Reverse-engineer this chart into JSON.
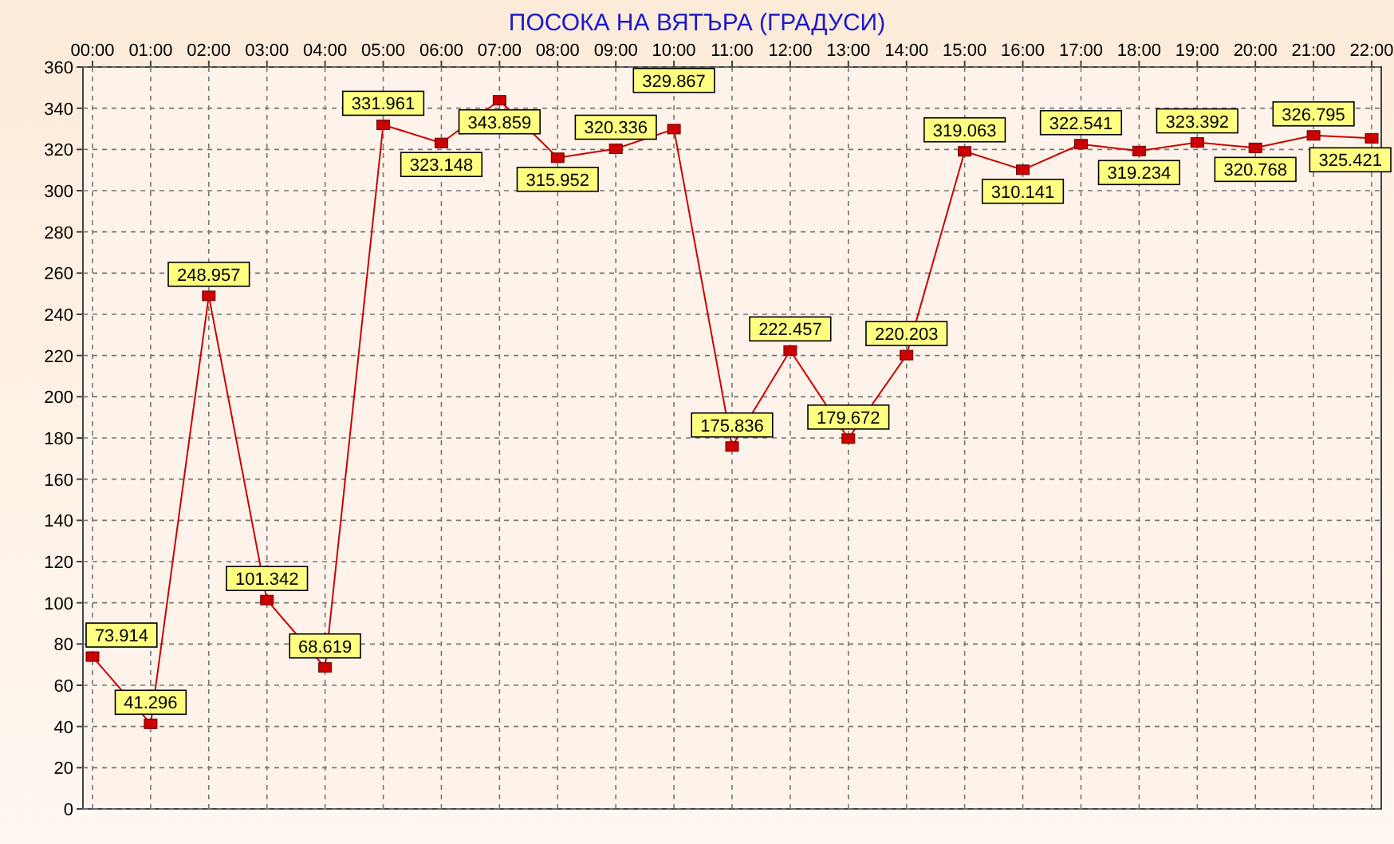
{
  "chart_data": {
    "type": "line",
    "title": "ПОСОКА НА ВЯТЪРА    (ГРАДУСИ)",
    "categories": [
      "00:00",
      "01:00",
      "02:00",
      "03:00",
      "04:00",
      "05:00",
      "06:00",
      "07:00",
      "08:00",
      "09:00",
      "10:00",
      "11:00",
      "12:00",
      "13:00",
      "14:00",
      "15:00",
      "16:00",
      "17:00",
      "18:00",
      "19:00",
      "20:00",
      "21:00",
      "22:00"
    ],
    "series": [
      {
        "color": "#cc0000",
        "values": [
          73.914,
          41.296,
          248.957,
          101.342,
          68.619,
          331.961,
          323.148,
          343.859,
          315.952,
          320.336,
          329.867,
          175.836,
          222.457,
          179.672,
          220.203,
          319.063,
          310.141,
          322.541,
          319.234,
          323.392,
          320.768,
          326.795,
          325.421
        ]
      }
    ],
    "ylim": [
      0,
      360
    ],
    "yticks": [
      0,
      20,
      40,
      60,
      80,
      100,
      120,
      140,
      160,
      180,
      200,
      220,
      240,
      260,
      280,
      300,
      320,
      340,
      360
    ],
    "grid": true,
    "marker": "square",
    "line_style": "solid",
    "data_labels": true
  }
}
